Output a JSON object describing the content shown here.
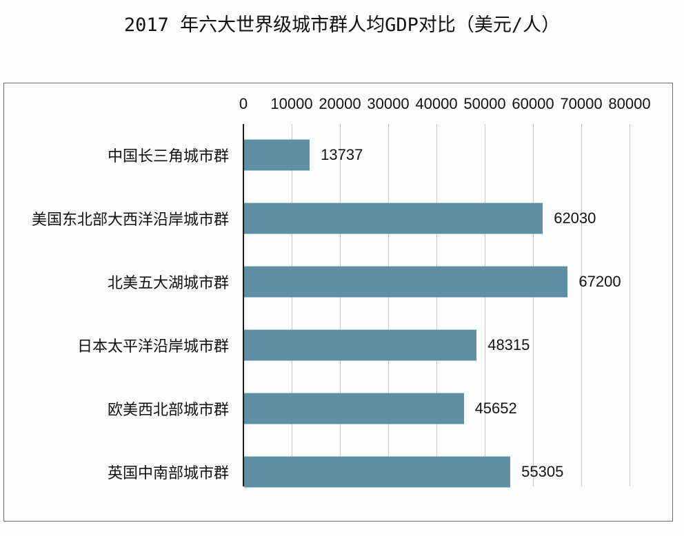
{
  "title": "2017 年六大世界级城市群人均GDP对比（美元/人）",
  "colors": {
    "bar": "#5e8fa4",
    "axis": "#1a1a1a",
    "grid": "#c8c8cc",
    "frame": "#6b6b6b"
  },
  "axis": {
    "ticks": [
      "0",
      "10000",
      "20000",
      "30000",
      "40000",
      "50000",
      "60000",
      "70000",
      "80000"
    ]
  },
  "categories": [
    {
      "label": "中国长三角城市群",
      "value": "13737"
    },
    {
      "label": "美国东北部大西洋沿岸城市群",
      "value": "62030"
    },
    {
      "label": "北美五大湖城市群",
      "value": "67200"
    },
    {
      "label": "日本太平洋沿岸城市群",
      "value": "48315"
    },
    {
      "label": "欧美西北部城市群",
      "value": "45652"
    },
    {
      "label": "英国中南部城市群",
      "value": "55305"
    }
  ],
  "chart_data": {
    "type": "bar",
    "orientation": "horizontal",
    "title": "2017 年六大世界级城市群人均GDP对比（美元/人）",
    "categories": [
      "中国长三角城市群",
      "美国东北部大西洋沿岸城市群",
      "北美五大湖城市群",
      "日本太平洋沿岸城市群",
      "欧美西北部城市群",
      "英国中南部城市群"
    ],
    "values": [
      13737,
      62030,
      67200,
      48315,
      45652,
      55305
    ],
    "xlabel": "",
    "ylabel": "",
    "xlim": [
      0,
      80000
    ],
    "x_ticks": [
      0,
      10000,
      20000,
      30000,
      40000,
      50000,
      60000,
      70000,
      80000
    ],
    "x_axis_position": "top",
    "grid": true,
    "data_labels": true,
    "legend": null,
    "unit": "美元/人"
  }
}
